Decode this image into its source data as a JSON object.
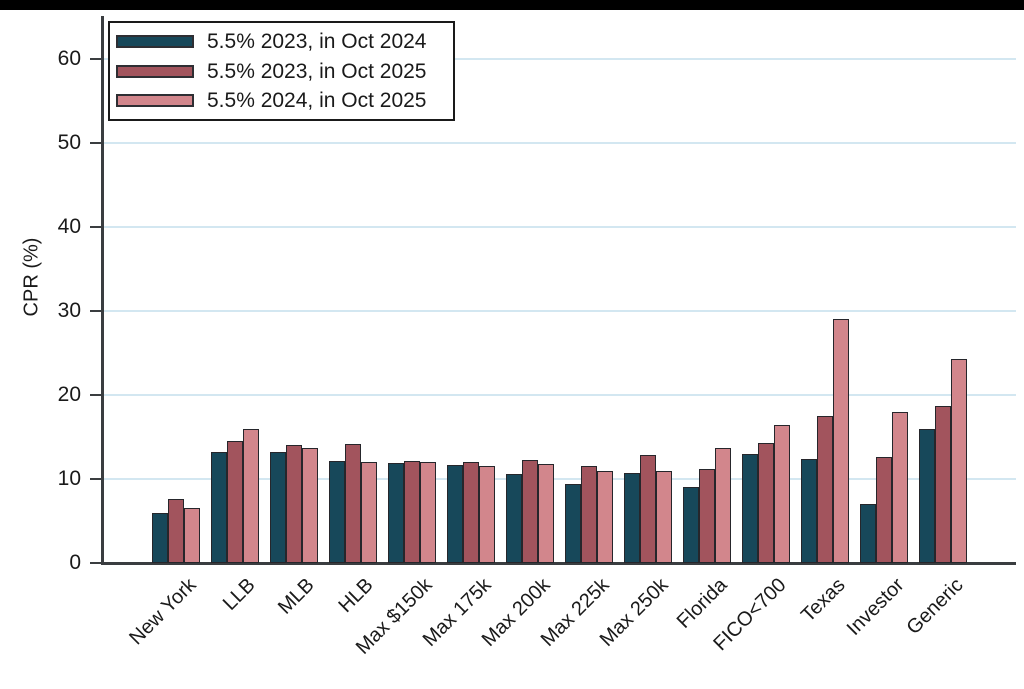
{
  "page": {
    "background_color": "#ffffff",
    "top_strip_color": "#000000"
  },
  "chart_data": {
    "type": "bar",
    "title": "",
    "xlabel": "",
    "ylabel": "CPR (%)",
    "ylim": [
      0,
      65
    ],
    "yticks": [
      0,
      10,
      20,
      30,
      40,
      50,
      60
    ],
    "grid": "horizontal gridlines at each y tick",
    "legend_position": "upper-left, boxed",
    "categories": [
      "New York",
      "LLB",
      "MLB",
      "HLB",
      "Max $150k",
      "Max 175k",
      "Max 200k",
      "Max 225k",
      "Max 250k",
      "Florida",
      "FICO<700",
      "Texas",
      "Investor",
      "Generic"
    ],
    "series": [
      {
        "name": "5.5% 2023, in Oct 2024",
        "color": "#17485A",
        "values": [
          6.0,
          13.2,
          13.2,
          12.1,
          11.9,
          11.7,
          10.6,
          9.4,
          10.7,
          9.1,
          13.0,
          12.4,
          7.0,
          16.0
        ]
      },
      {
        "name": "5.5% 2023, in Oct 2025",
        "color": "#A2545D",
        "values": [
          7.6,
          14.5,
          14.0,
          14.2,
          12.2,
          12.0,
          12.3,
          11.6,
          12.8,
          11.2,
          14.3,
          17.5,
          12.6,
          18.7
        ]
      },
      {
        "name": "5.5% 2024, in Oct 2025",
        "color": "#D2868C",
        "values": [
          6.5,
          16.0,
          13.7,
          12.0,
          12.0,
          11.6,
          11.8,
          10.9,
          11.0,
          13.7,
          16.4,
          29.0,
          18.0,
          24.3
        ]
      }
    ],
    "bar_border_color": "#26262b",
    "gridline_color": "#D3E7F1",
    "axis_color": "#3A3D40",
    "text_color": "#1a1a1a"
  }
}
